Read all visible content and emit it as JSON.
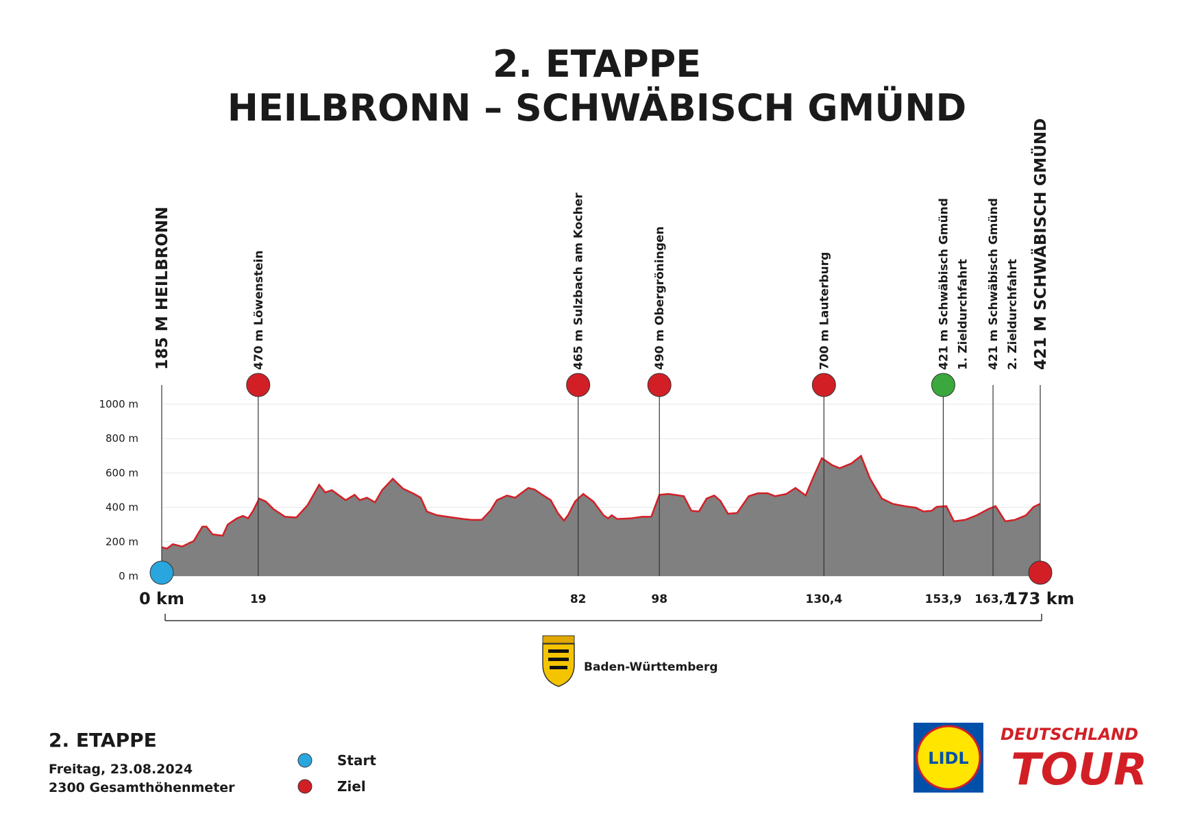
{
  "chart_data": {
    "type": "area",
    "title": [
      "2. ETAPPE",
      "HEILBRONN – SCHWÄBISCH GMÜND"
    ],
    "x": [
      0,
      1,
      2.2,
      4,
      6.3,
      8,
      8.8,
      10,
      12,
      13,
      14.8,
      16,
      17,
      18,
      19.2,
      20.5,
      22,
      24.3,
      26.5,
      28.7,
      31,
      32.2,
      33.5,
      36.2,
      38,
      39,
      40.4,
      42,
      43.4,
      45.5,
      47.5,
      49.7,
      51,
      52.2,
      54.2,
      57.2,
      59.4,
      61,
      63,
      64.7,
      66,
      68,
      69.6,
      71,
      72.2,
      73.4,
      74.7,
      76.6,
      78,
      79.2,
      80,
      81.4,
      83,
      85,
      87,
      87.9,
      88.6,
      89.7,
      92.4,
      94.6,
      96.4,
      98,
      99.8,
      102.8,
      104.3,
      105.8,
      107.3,
      108.8,
      110,
      111.5,
      113.3,
      115.6,
      117.4,
      119.3,
      120.8,
      123,
      124.8,
      126.8,
      128.3,
      130,
      132,
      133.5,
      135.8,
      137.7,
      139.5,
      141.8,
      144,
      146.3,
      148.5,
      150,
      151.6,
      152.6,
      154.5,
      156,
      158.2,
      160.5,
      162.7,
      164.2,
      166.1,
      168,
      170.2,
      171.7,
      173
    ],
    "values": [
      168,
      160,
      186,
      172,
      204,
      288,
      288,
      243,
      235,
      300,
      336,
      350,
      336,
      380,
      451,
      434,
      390,
      345,
      341,
      412,
      531,
      487,
      500,
      442,
      473,
      442,
      456,
      429,
      500,
      566,
      509,
      478,
      456,
      376,
      354,
      341,
      332,
      327,
      327,
      380,
      442,
      469,
      456,
      487,
      513,
      504,
      478,
      442,
      367,
      323,
      354,
      434,
      478,
      434,
      354,
      336,
      354,
      332,
      336,
      345,
      345,
      473,
      478,
      465,
      380,
      376,
      451,
      469,
      438,
      363,
      367,
      465,
      482,
      482,
      465,
      478,
      513,
      469,
      575,
      686,
      646,
      628,
      655,
      699,
      566,
      451,
      420,
      407,
      398,
      376,
      380,
      403,
      407,
      319,
      327,
      354,
      389,
      407,
      319,
      327,
      354,
      403,
      421
    ],
    "color": "#808080",
    "line_color": "#d21f26",
    "xlim": [
      0,
      173
    ],
    "ylim": [
      0,
      1000
    ],
    "yticks": [
      {
        "value": 0,
        "label": "0 m"
      },
      {
        "value": 200,
        "label": "200 m"
      },
      {
        "value": 400,
        "label": "400 m"
      },
      {
        "value": 600,
        "label": "600 m"
      },
      {
        "value": 800,
        "label": "800 m"
      },
      {
        "value": 1000,
        "label": "1000 m"
      }
    ],
    "xticks": [
      {
        "value": 0,
        "label": "0 km"
      },
      19,
      82,
      98,
      {
        "value": 130.4,
        "label": "130,4"
      },
      {
        "value": 153.9,
        "label": "153,9"
      },
      {
        "value": 163.7,
        "label": "163,7"
      },
      {
        "value": 173,
        "label": "173 km"
      }
    ],
    "grid": true,
    "markers": [
      {
        "x": 0,
        "lines": [
          "185 M HEILBRONN"
        ],
        "icon": "start"
      },
      {
        "x": 19,
        "lines": [
          "470 m Löwenstein"
        ],
        "icon": "kom"
      },
      {
        "x": 82,
        "lines": [
          "465 m Sulzbach am Kocher"
        ],
        "icon": "kom"
      },
      {
        "x": 98,
        "lines": [
          "490 m Obergröningen"
        ],
        "icon": "kom"
      },
      {
        "x": 130.4,
        "lines": [
          "700 m Lauterburg"
        ],
        "icon": "kom"
      },
      {
        "x": 153.9,
        "lines": [
          "421 m Schwäbisch Gmünd",
          "1. Zieldurchfahrt"
        ],
        "icon": "sprint"
      },
      {
        "x": 163.7,
        "lines": [
          "421 m Schwäbisch Gmünd",
          "2. Zieldurchfahrt"
        ]
      },
      {
        "x": 173,
        "lines": [
          "421 M SCHWÄBISCH GMÜND"
        ],
        "icon": "finish"
      }
    ],
    "icon_colors": {
      "start": "#2aa6df",
      "kom": "#d21f26",
      "sprint": "#3aa83d",
      "finish": "#d21f26"
    }
  },
  "region": "Baden-Württemberg",
  "footer": {
    "stage": "2. ETAPPE",
    "date": "Freitag, 23.08.2024",
    "total": "2300 Gesamthöhenmeter"
  },
  "legend": [
    "Start",
    "Ziel"
  ],
  "logos": {
    "lidl": "LIDL",
    "tour": [
      "DEUTSCHLAND",
      "TOUR"
    ]
  }
}
